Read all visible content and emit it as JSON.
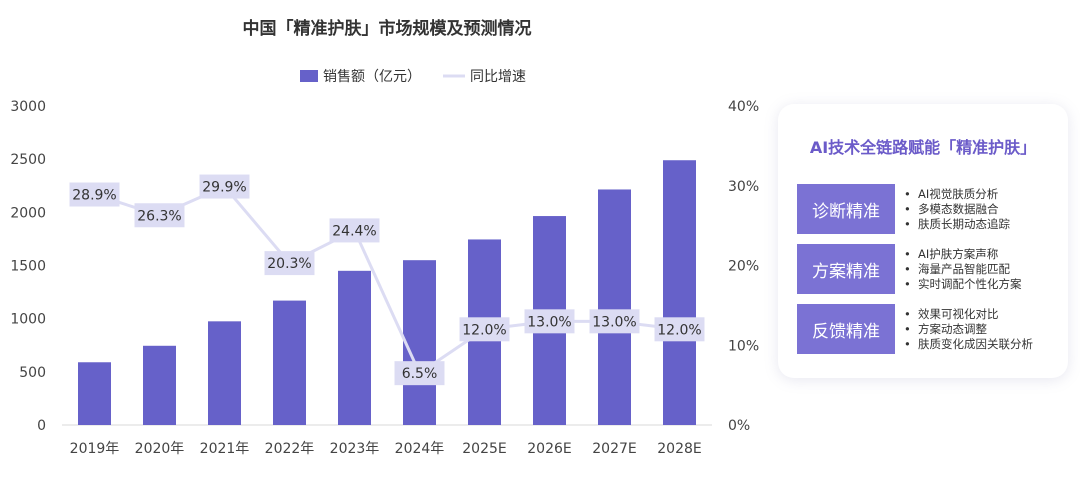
{
  "chart_data": {
    "type": "bar+line",
    "title": "中国「精准护肤」市场规模及预测情况",
    "categories": [
      "2019年",
      "2020年",
      "2021年",
      "2022年",
      "2023年",
      "2024年",
      "2025E",
      "2026E",
      "2027E",
      "2028E"
    ],
    "series": [
      {
        "name": "销售额（亿元）",
        "type": "bar",
        "axis": "left",
        "color": "#6661c9",
        "values": [
          590,
          745,
          975,
          1170,
          1450,
          1550,
          1745,
          1965,
          2215,
          2490
        ]
      },
      {
        "name": "同比增速",
        "type": "line",
        "axis": "right",
        "color": "#dcdcf3",
        "values": [
          28.9,
          26.3,
          29.9,
          20.3,
          24.4,
          6.5,
          12.0,
          13.0,
          13.0,
          12.0
        ],
        "labels": [
          "28.9%",
          "26.3%",
          "29.9%",
          "20.3%",
          "24.4%",
          "6.5%",
          "12.0%",
          "13.0%",
          "13.0%",
          "12.0%"
        ]
      }
    ],
    "ylim": [
      0,
      3000
    ],
    "yticks": [
      "0",
      "500",
      "1000",
      "1500",
      "2000",
      "2500",
      "3000"
    ],
    "y2lim": [
      0,
      40
    ],
    "y2ticks": [
      "0%",
      "10%",
      "20%",
      "30%",
      "40%"
    ],
    "legend_position": "top-center",
    "grid": false
  },
  "panel": {
    "title": "AI技术全链路赋能「精准护肤」",
    "features": [
      {
        "label": "诊断精准",
        "items": [
          "AI视觉肤质分析",
          "多模态数据融合",
          "肤质长期动态追踪"
        ]
      },
      {
        "label": "方案精准",
        "items": [
          "AI护肤方案声称",
          "海量产品智能匹配",
          "实时调配个性化方案"
        ]
      },
      {
        "label": "反馈精准",
        "items": [
          "效果可视化对比",
          "方案动态调整",
          "肤质变化成因关联分析"
        ]
      }
    ]
  }
}
